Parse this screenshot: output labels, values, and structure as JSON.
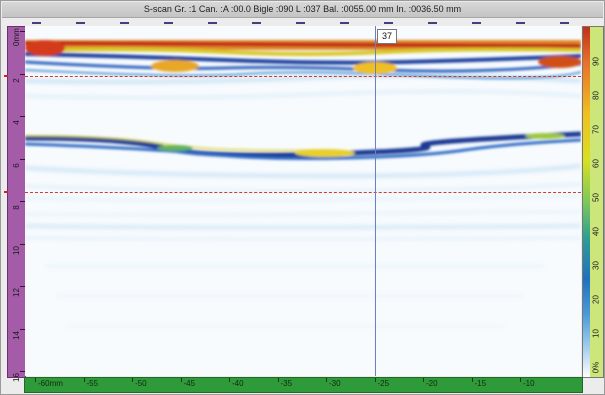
{
  "title": "S-scan Gr. :1 Can. :A :00.0 Bigle :090 L :037 Bal. :0055.00 mm In. :0036.50 mm",
  "cursor": {
    "label": "37"
  },
  "depth_ruler": {
    "labels": [
      "0mm",
      "2",
      "4",
      "6",
      "8",
      "10",
      "12",
      "14",
      "16"
    ]
  },
  "x_ruler": {
    "labels": [
      "-60mm",
      "-55",
      "-50",
      "-45",
      "-40",
      "-35",
      "-30",
      "-25",
      "-20",
      "-15",
      "-10"
    ]
  },
  "palette": {
    "labels": [
      "90",
      "80",
      "70",
      "60",
      "50",
      "40",
      "30",
      "20",
      "10",
      "0%"
    ]
  },
  "colors": {
    "depth_ruler": "#a45ca8",
    "x_ruler": "#2f9a3a",
    "palette_scale": "#cde67a",
    "cursor": "#6a7fc4",
    "gate": "#d23a2a"
  }
}
